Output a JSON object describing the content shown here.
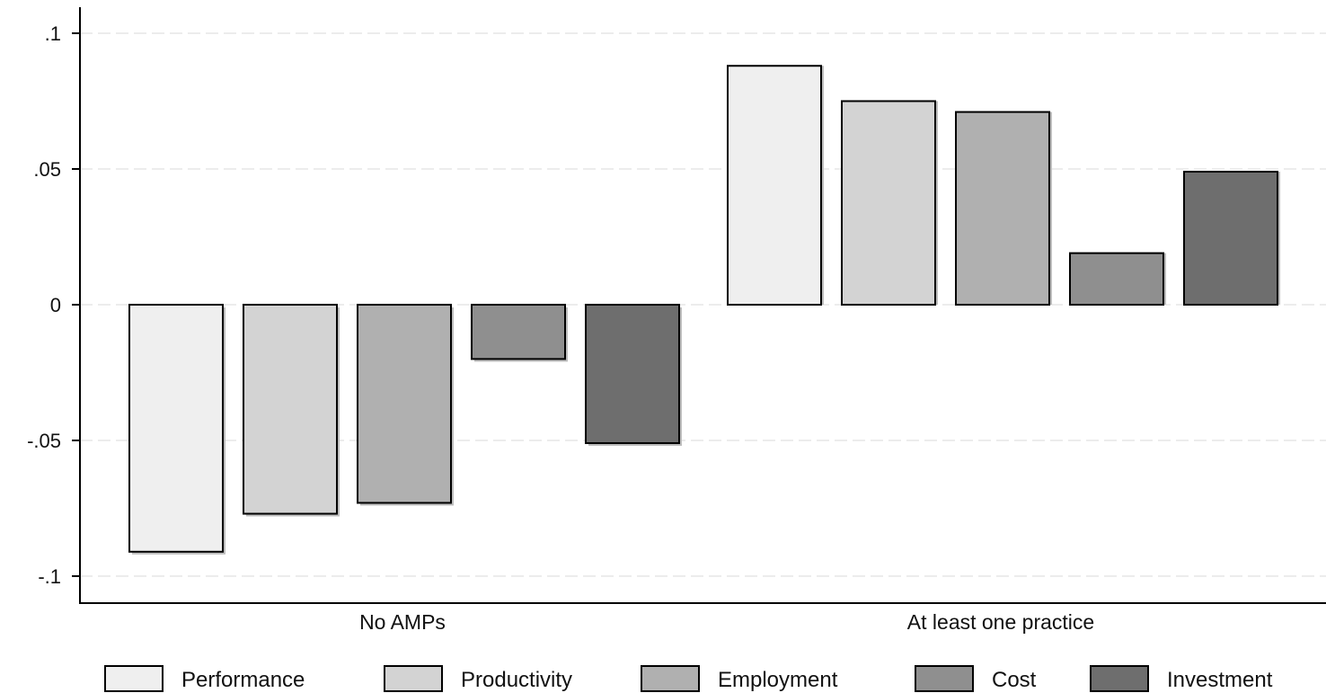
{
  "chart_data": {
    "type": "bar",
    "title": "",
    "xlabel": "",
    "ylabel": "",
    "categories": [
      "No AMPs",
      "At least one practice"
    ],
    "series": [
      {
        "name": "Performance",
        "values": [
          -0.091,
          0.088
        ],
        "color": "#efefef"
      },
      {
        "name": "Productivity",
        "values": [
          -0.077,
          0.075
        ],
        "color": "#d3d3d3"
      },
      {
        "name": "Employment",
        "values": [
          -0.073,
          0.071
        ],
        "color": "#b0b0b0"
      },
      {
        "name": "Cost",
        "values": [
          -0.02,
          0.019
        ],
        "color": "#8f8f8f"
      },
      {
        "name": "Investment",
        "values": [
          -0.051,
          0.049
        ],
        "color": "#6e6e6e"
      }
    ],
    "yticks": [
      0.1,
      0.05,
      0,
      -0.05,
      -0.1
    ],
    "ytick_labels": [
      ".1",
      ".05",
      "0",
      "-.05",
      "-.1"
    ],
    "ylim": [
      -0.11,
      0.11
    ],
    "grid": true,
    "legend_position": "bottom"
  }
}
